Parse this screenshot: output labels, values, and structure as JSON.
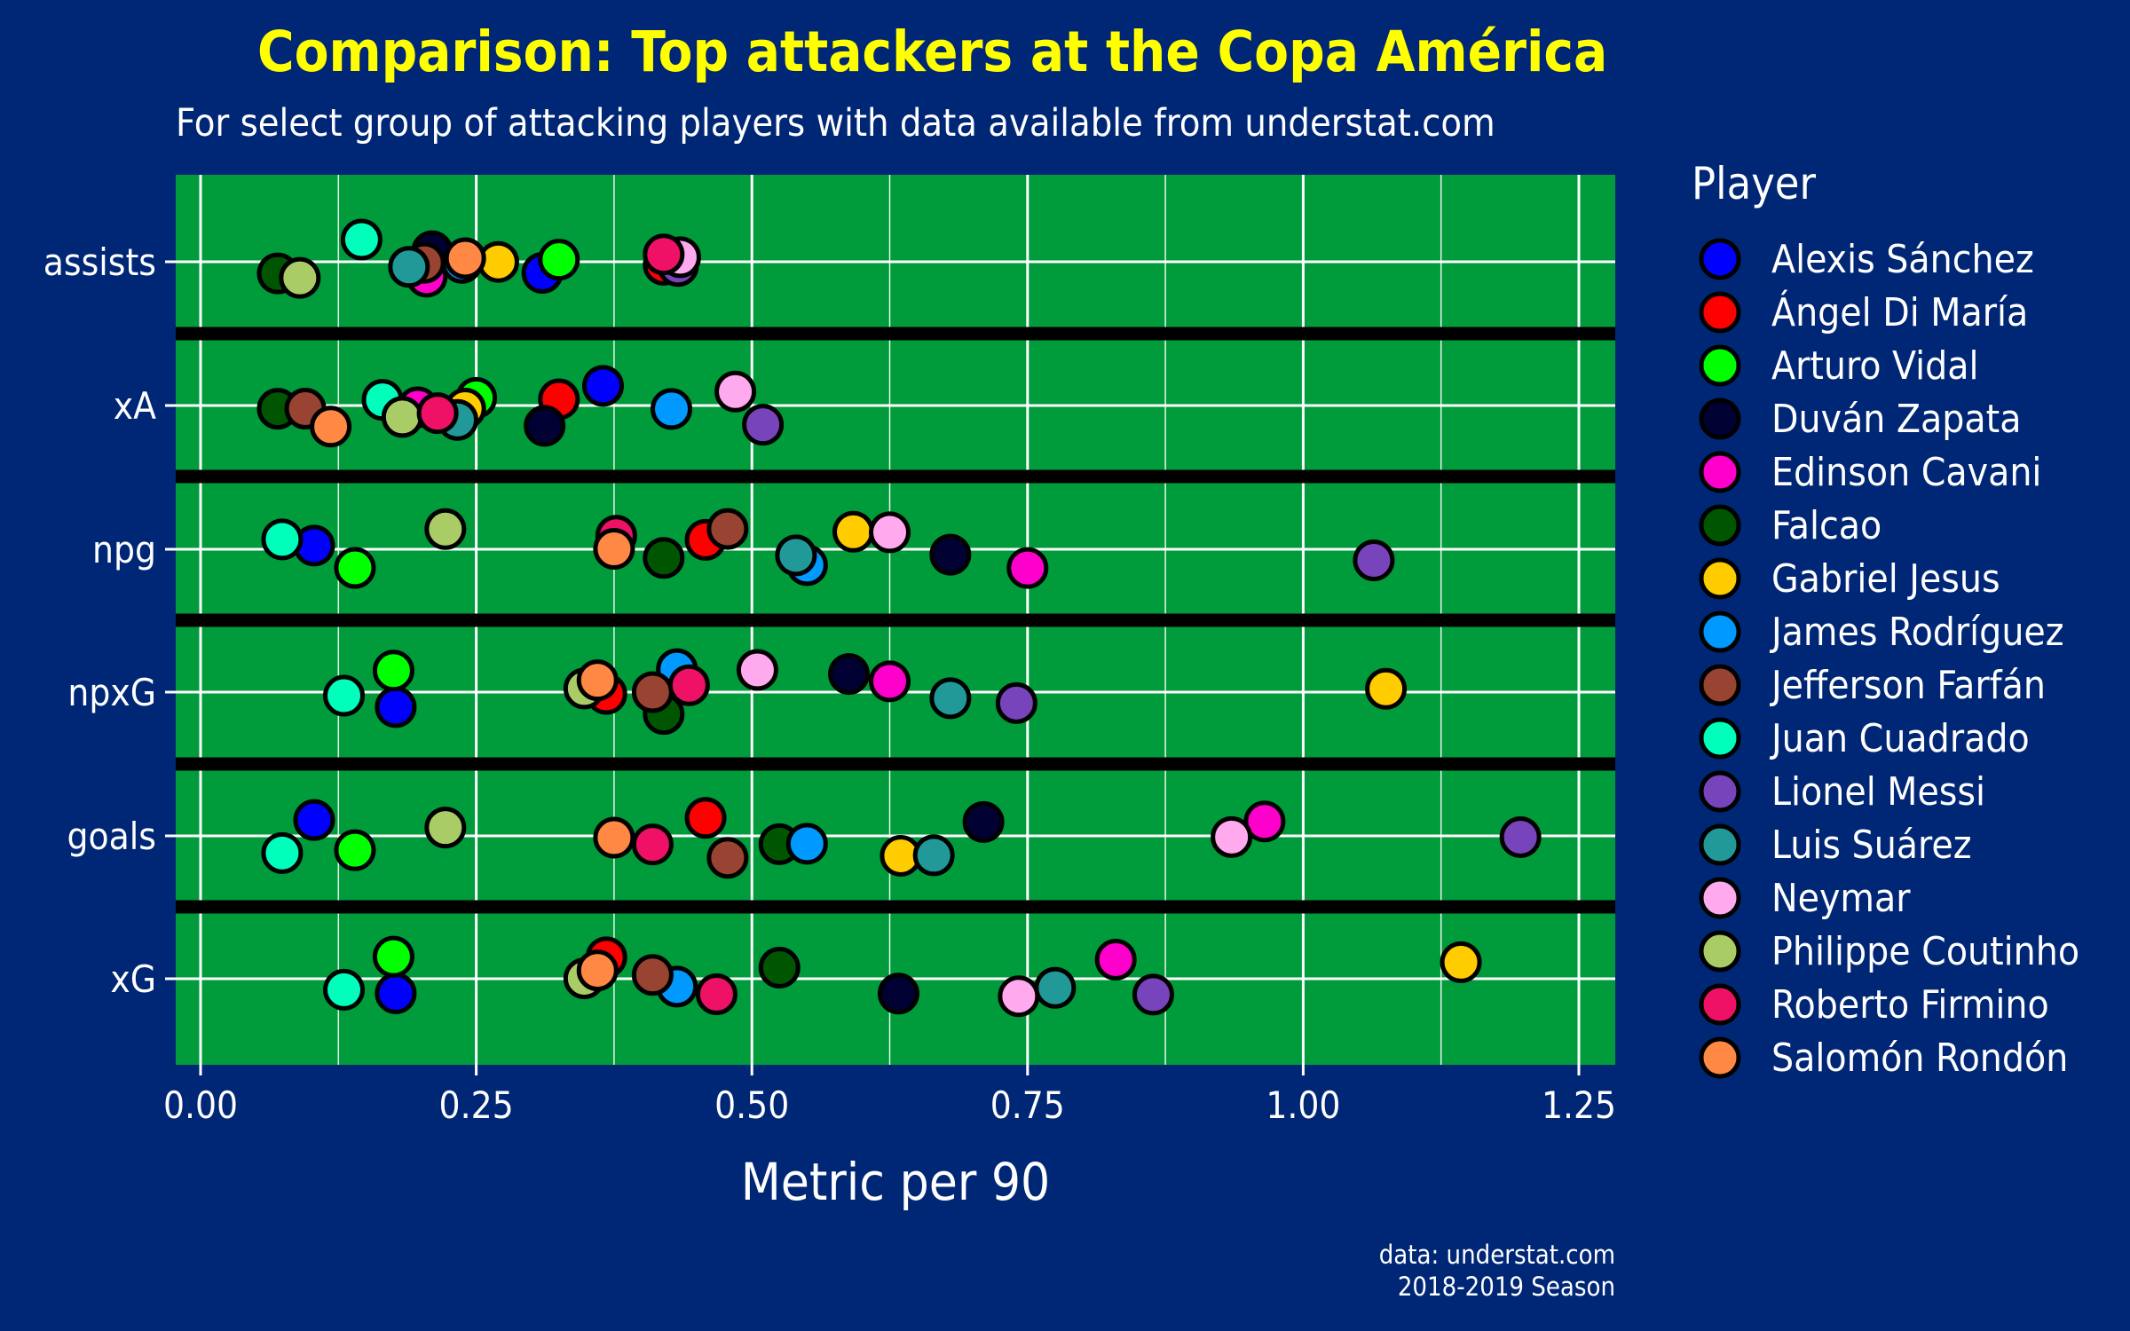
{
  "title": "Comparison: Top attackers at the Copa América",
  "subtitle": "For select group of attacking players with data available from understat.com",
  "caption_line1": "data: understat.com",
  "caption_line2": "2018-2019 Season",
  "colors": {
    "background": "#002776",
    "panel": "#009b3a",
    "title": "#ffff00",
    "separator": "#000000"
  },
  "chart_data": {
    "type": "scatter",
    "title": "Comparison: Top attackers at the Copa América",
    "xlabel": "Metric per 90",
    "ylabel": "",
    "xlim": [
      -0.02,
      1.28
    ],
    "x_ticks": [
      "0.00",
      "0.25",
      "0.50",
      "0.75",
      "1.00",
      "1.25"
    ],
    "x_tick_values": [
      0,
      0.25,
      0.5,
      0.75,
      1.0,
      1.25
    ],
    "categories": [
      "assists",
      "xA",
      "npg",
      "npxG",
      "goals",
      "xG"
    ],
    "grid": true,
    "legend": {
      "title": "Player",
      "position": "right"
    },
    "series": [
      {
        "name": "Alexis Sánchez",
        "color": "#0000ff",
        "values": {
          "assists": 0.31,
          "xA": 0.365,
          "npg": 0.103,
          "npxG": 0.177,
          "goals": 0.103,
          "xG": 0.177
        }
      },
      {
        "name": "Ángel Di María",
        "color": "#ff0000",
        "values": {
          "assists": 0.42,
          "xA": 0.325,
          "npg": 0.458,
          "npxG": 0.368,
          "goals": 0.458,
          "xG": 0.368
        }
      },
      {
        "name": "Arturo Vidal",
        "color": "#00ff00",
        "values": {
          "assists": 0.325,
          "xA": 0.25,
          "npg": 0.14,
          "npxG": 0.175,
          "goals": 0.14,
          "xG": 0.175
        }
      },
      {
        "name": "Duván Zapata",
        "color": "#000033",
        "values": {
          "assists": 0.21,
          "xA": 0.312,
          "npg": 0.68,
          "npxG": 0.588,
          "goals": 0.71,
          "xG": 0.633
        }
      },
      {
        "name": "Edinson Cavani",
        "color": "#ff00cc",
        "values": {
          "assists": 0.205,
          "xA": 0.197,
          "npg": 0.75,
          "npxG": 0.625,
          "goals": 0.965,
          "xG": 0.83
        }
      },
      {
        "name": "Falcao",
        "color": "#005500",
        "values": {
          "assists": 0.07,
          "xA": 0.07,
          "npg": 0.42,
          "npxG": 0.42,
          "goals": 0.525,
          "xG": 0.525
        }
      },
      {
        "name": "Gabriel Jesus",
        "color": "#ffcc00",
        "values": {
          "assists": 0.27,
          "xA": 0.24,
          "npg": 0.592,
          "npxG": 1.075,
          "goals": 0.635,
          "xG": 1.143
        }
      },
      {
        "name": "James Rodríguez",
        "color": "#0099ff",
        "values": {
          "assists": 0.237,
          "xA": 0.427,
          "npg": 0.55,
          "npxG": 0.432,
          "goals": 0.55,
          "xG": 0.432
        }
      },
      {
        "name": "Jefferson Farfán",
        "color": "#994433",
        "values": {
          "assists": 0.203,
          "xA": 0.095,
          "npg": 0.478,
          "npxG": 0.41,
          "goals": 0.478,
          "xG": 0.41
        }
      },
      {
        "name": "Juan Cuadrado",
        "color": "#00ffbb",
        "values": {
          "assists": 0.146,
          "xA": 0.165,
          "npg": 0.074,
          "npxG": 0.13,
          "goals": 0.074,
          "xG": 0.13
        }
      },
      {
        "name": "Lionel Messi",
        "color": "#7744bb",
        "values": {
          "assists": 0.433,
          "xA": 0.51,
          "npg": 1.064,
          "npxG": 0.74,
          "goals": 1.197,
          "xG": 0.864
        }
      },
      {
        "name": "Luis Suárez",
        "color": "#229999",
        "values": {
          "assists": 0.189,
          "xA": 0.233,
          "npg": 0.54,
          "npxG": 0.68,
          "goals": 0.665,
          "xG": 0.775
        }
      },
      {
        "name": "Neymar",
        "color": "#ffaaee",
        "values": {
          "assists": 0.435,
          "xA": 0.485,
          "npg": 0.625,
          "npxG": 0.505,
          "goals": 0.935,
          "xG": 0.742
        }
      },
      {
        "name": "Philippe Coutinho",
        "color": "#aacc66",
        "values": {
          "assists": 0.09,
          "xA": 0.183,
          "npg": 0.222,
          "npxG": 0.348,
          "goals": 0.222,
          "xG": 0.348
        }
      },
      {
        "name": "Roberto Firmino",
        "color": "#ee1166",
        "values": {
          "assists": 0.42,
          "xA": 0.215,
          "npg": 0.377,
          "npxG": 0.443,
          "goals": 0.41,
          "xG": 0.468
        }
      },
      {
        "name": "Salomón Rondón",
        "color": "#ff8844",
        "values": {
          "assists": 0.24,
          "xA": 0.118,
          "npg": 0.375,
          "npxG": 0.36,
          "goals": 0.375,
          "xG": 0.36
        }
      }
    ]
  }
}
